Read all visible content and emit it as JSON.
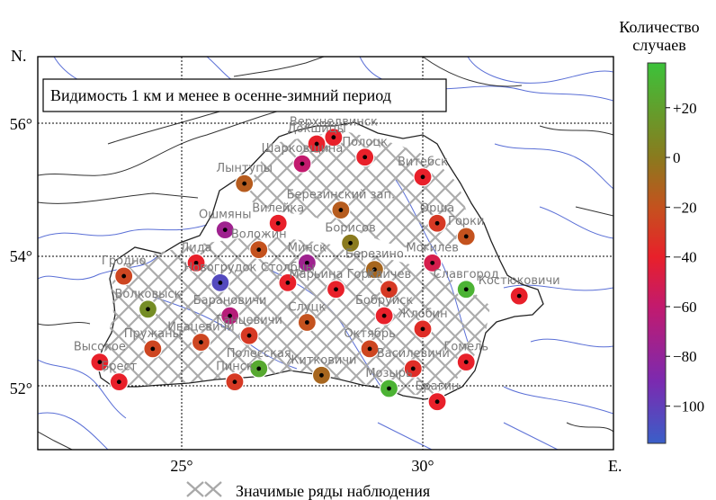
{
  "map": {
    "annotation": "Видимость 1 км и менее в осенне-зимний период",
    "north_label": "N.",
    "east_label": "E.",
    "lon_ticks": [
      {
        "value": 25,
        "label": "25°"
      },
      {
        "value": 30,
        "label": "30°"
      }
    ],
    "lat_ticks": [
      {
        "value": 56,
        "label": "56°"
      },
      {
        "value": 54,
        "label": "54°"
      },
      {
        "value": 52,
        "label": "52°"
      }
    ],
    "extent": {
      "lon": [
        22.0,
        34.0
      ],
      "lat": [
        51.0,
        57.0
      ]
    }
  },
  "legend": {
    "hatch_label": "Значимые ряды наблюдения"
  },
  "colorbar": {
    "title_line1": "Количество",
    "title_line2": "случаев",
    "range": [
      -115,
      38
    ],
    "ticks": [
      {
        "value": 20,
        "label": "+20"
      },
      {
        "value": 0,
        "label": "0"
      },
      {
        "value": -20,
        "label": "−20"
      },
      {
        "value": -40,
        "label": "−40"
      },
      {
        "value": -60,
        "label": "−60"
      },
      {
        "value": -80,
        "label": "−80"
      },
      {
        "value": -100,
        "label": "−100"
      }
    ],
    "stops": [
      {
        "value": -115,
        "color": "#3a5fc8"
      },
      {
        "value": -90,
        "color": "#7b2ab0"
      },
      {
        "value": -60,
        "color": "#c21a6e"
      },
      {
        "value": -40,
        "color": "#e8202a"
      },
      {
        "value": -20,
        "color": "#c4521e"
      },
      {
        "value": 0,
        "color": "#8a7a1e"
      },
      {
        "value": 38,
        "color": "#3cc23a"
      }
    ]
  },
  "stations": [
    {
      "name": "Верхнедвинск",
      "lon": 28.15,
      "lat": 55.8,
      "value": -40
    },
    {
      "name": "Полоцк",
      "lon": 28.8,
      "lat": 55.5,
      "value": -40
    },
    {
      "name": "Докшицы",
      "lon": 27.8,
      "lat": 55.7,
      "value": -40
    },
    {
      "name": "Шарковщина",
      "lon": 27.5,
      "lat": 55.4,
      "value": -60
    },
    {
      "name": "Витебск",
      "lon": 30.0,
      "lat": 55.2,
      "value": -40
    },
    {
      "name": "Лынтупы",
      "lon": 26.3,
      "lat": 55.1,
      "value": -15
    },
    {
      "name": "Вилейка",
      "lon": 27.0,
      "lat": 54.5,
      "value": -40
    },
    {
      "name": "Березинский зап.",
      "lon": 28.3,
      "lat": 54.7,
      "value": -15
    },
    {
      "name": "Орша",
      "lon": 30.3,
      "lat": 54.5,
      "value": -30
    },
    {
      "name": "Горки",
      "lon": 30.9,
      "lat": 54.3,
      "value": -20
    },
    {
      "name": "Ошмяны",
      "lon": 25.9,
      "lat": 54.4,
      "value": -75
    },
    {
      "name": "Воложин",
      "lon": 26.6,
      "lat": 54.1,
      "value": -20
    },
    {
      "name": "Борисов",
      "lon": 28.5,
      "lat": 54.2,
      "value": 0
    },
    {
      "name": "Минск",
      "lon": 27.6,
      "lat": 53.9,
      "value": -75
    },
    {
      "name": "Лида",
      "lon": 25.3,
      "lat": 53.9,
      "value": -40
    },
    {
      "name": "Новогрудок",
      "lon": 25.8,
      "lat": 53.6,
      "value": -105
    },
    {
      "name": "Столбцы",
      "lon": 27.2,
      "lat": 53.6,
      "value": -40
    },
    {
      "name": "Березино",
      "lon": 29.0,
      "lat": 53.8,
      "value": -10
    },
    {
      "name": "Могилев",
      "lon": 30.2,
      "lat": 53.9,
      "value": -50
    },
    {
      "name": "Гродно",
      "lon": 23.8,
      "lat": 53.7,
      "value": -25
    },
    {
      "name": "Марьина Горка",
      "lon": 28.2,
      "lat": 53.5,
      "value": -40
    },
    {
      "name": "Кличев",
      "lon": 29.3,
      "lat": 53.5,
      "value": -30
    },
    {
      "name": "Славгород",
      "lon": 30.9,
      "lat": 53.5,
      "value": 30
    },
    {
      "name": "Костюковичи",
      "lon": 32.0,
      "lat": 53.4,
      "value": -40
    },
    {
      "name": "Волковыск",
      "lon": 24.3,
      "lat": 53.2,
      "value": 10
    },
    {
      "name": "Барановичи",
      "lon": 26.0,
      "lat": 53.1,
      "value": -65
    },
    {
      "name": "Слуцк",
      "lon": 27.6,
      "lat": 53.0,
      "value": -20
    },
    {
      "name": "Бобруйск",
      "lon": 29.2,
      "lat": 53.1,
      "value": -40
    },
    {
      "name": "Жлобин",
      "lon": 30.0,
      "lat": 52.9,
      "value": -35
    },
    {
      "name": "Ивацевичи",
      "lon": 25.4,
      "lat": 52.7,
      "value": -25
    },
    {
      "name": "Ганцевичи",
      "lon": 26.4,
      "lat": 52.8,
      "value": -30
    },
    {
      "name": "Пружаны",
      "lon": 24.4,
      "lat": 52.6,
      "value": -25
    },
    {
      "name": "Высокое",
      "lon": 23.3,
      "lat": 52.4,
      "value": -40
    },
    {
      "name": "Октябрь",
      "lon": 28.9,
      "lat": 52.6,
      "value": -25
    },
    {
      "name": "Василевичи",
      "lon": 29.8,
      "lat": 52.3,
      "value": -35
    },
    {
      "name": "Гомель",
      "lon": 30.9,
      "lat": 52.4,
      "value": -40
    },
    {
      "name": "Полесская",
      "lon": 26.6,
      "lat": 52.3,
      "value": 25
    },
    {
      "name": "Житковичи",
      "lon": 27.9,
      "lat": 52.2,
      "value": -10
    },
    {
      "name": "Пинск",
      "lon": 26.1,
      "lat": 52.1,
      "value": -30
    },
    {
      "name": "Брест",
      "lon": 23.7,
      "lat": 52.1,
      "value": -40
    },
    {
      "name": "Мозырь",
      "lon": 29.3,
      "lat": 52.0,
      "value": 30
    },
    {
      "name": "Брагин",
      "lon": 30.3,
      "lat": 51.8,
      "value": -40
    }
  ]
}
